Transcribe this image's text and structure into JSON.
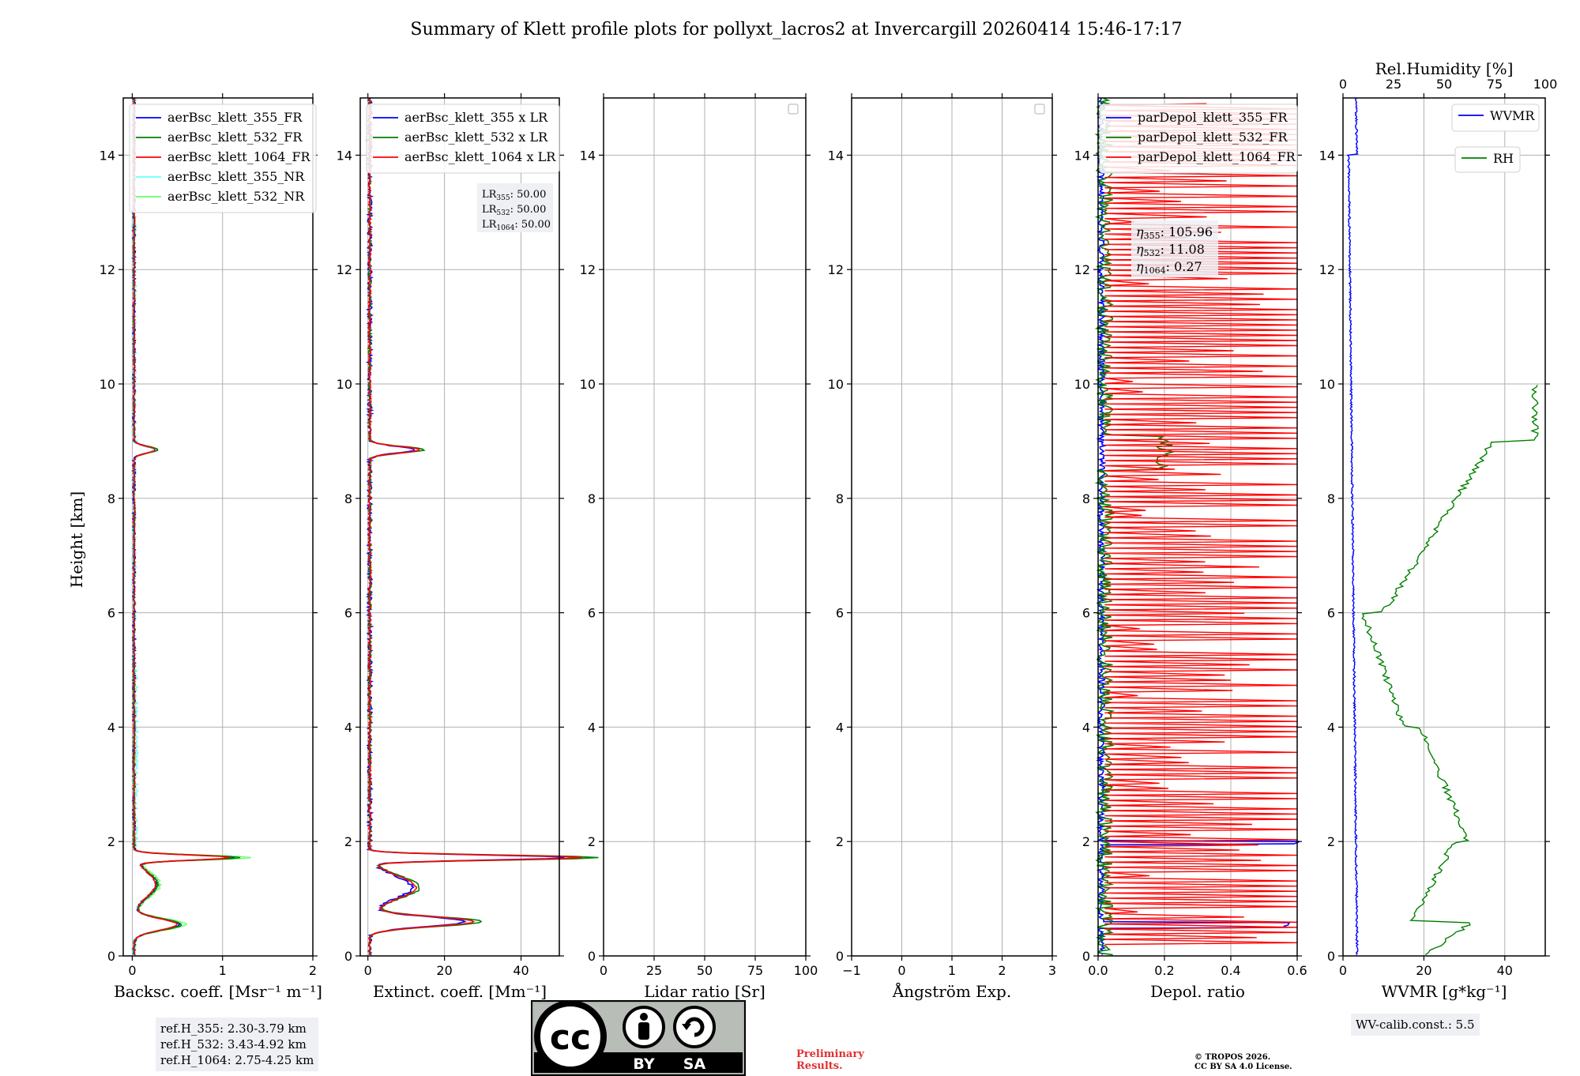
{
  "title": "Summary of Klett profile plots for pollyxt_lacros2 at Invercargill 20260414 15:46-17:17",
  "y_axis_label": "Height [km]",
  "colors": {
    "c355": "#0000ff",
    "c532": "#008000",
    "c1064": "#ff0000",
    "c355nr": "#66ffff",
    "c532nr": "#66ff66",
    "rh": "#008000",
    "wvmr": "#0000ff"
  },
  "chart_data": [
    {
      "type": "line",
      "id": "bsc",
      "xlabel": "Backsc. coeff. [Msr⁻¹ m⁻¹]",
      "xlim": [
        -0.1,
        2
      ],
      "xticks": [
        0,
        1,
        2
      ],
      "xticklabels": [
        "0",
        "1",
        "2"
      ],
      "ylim": [
        0,
        15
      ],
      "yticks": [
        0,
        2,
        4,
        6,
        8,
        10,
        12,
        14
      ],
      "legend": [
        "aerBsc_klett_355_FR",
        "aerBsc_klett_532_FR",
        "aerBsc_klett_1064_FR",
        "aerBsc_klett_355_NR",
        "aerBsc_klett_532_NR"
      ]
    },
    {
      "type": "line",
      "id": "ext",
      "xlabel": "Extinct. coeff. [Mm⁻¹]",
      "xlim": [
        -2,
        50
      ],
      "xticks": [
        0,
        20,
        40
      ],
      "xticklabels": [
        "0",
        "20",
        "40"
      ],
      "ylim": [
        0,
        15
      ],
      "yticks": [
        0,
        2,
        4,
        6,
        8,
        10,
        12,
        14
      ],
      "legend": [
        "aerBsc_klett_355 x LR",
        "aerBsc_klett_532 x LR",
        "aerBsc_klett_1064 x LR"
      ],
      "lidar_ratio": {
        "lr355": "50.00",
        "lr532": "50.00",
        "lr1064": "50.00"
      }
    },
    {
      "type": "line",
      "id": "lr",
      "xlabel": "Lidar ratio [Sr]",
      "xlim": [
        0,
        100
      ],
      "xticks": [
        0,
        25,
        50,
        75,
        100
      ],
      "xticklabels": [
        "0",
        "25",
        "50",
        "75",
        "100"
      ],
      "ylim": [
        0,
        15
      ],
      "yticks": [
        0,
        2,
        4,
        6,
        8,
        10,
        12,
        14
      ],
      "legend": []
    },
    {
      "type": "line",
      "id": "ang",
      "xlabel": "Ångström Exp.",
      "xlim": [
        -1,
        3
      ],
      "xticks": [
        -1,
        0,
        1,
        2,
        3
      ],
      "xticklabels": [
        "−1",
        "0",
        "1",
        "2",
        "3"
      ],
      "ylim": [
        0,
        15
      ],
      "yticks": [
        0,
        2,
        4,
        6,
        8,
        10,
        12,
        14
      ],
      "legend": []
    },
    {
      "type": "line",
      "id": "depol",
      "xlabel": "Depol. ratio",
      "xlim": [
        0,
        0.6
      ],
      "xticks": [
        0,
        0.2,
        0.4,
        0.6
      ],
      "xticklabels": [
        "0.0",
        "0.2",
        "0.4",
        "0.6"
      ],
      "ylim": [
        0,
        15
      ],
      "yticks": [
        0,
        2,
        4,
        6,
        8,
        10,
        12,
        14
      ],
      "legend": [
        "parDepol_klett_355_FR",
        "parDepol_klett_532_FR",
        "parDepol_klett_1064_FR"
      ],
      "eta": {
        "e355": "105.96",
        "e532": "11.08",
        "e1064": "0.27"
      }
    },
    {
      "type": "line",
      "id": "wv",
      "xlabel": "WVMR [g*kg⁻¹]",
      "xlim": [
        0,
        50
      ],
      "xticks": [
        0,
        20,
        40
      ],
      "xticklabels": [
        "0",
        "20",
        "40"
      ],
      "ylim": [
        0,
        15
      ],
      "yticks": [
        0,
        2,
        4,
        6,
        8,
        10,
        12,
        14
      ],
      "top_axis_label": "Rel.Humidity [%]",
      "top_xlim": [
        0,
        100
      ],
      "top_xticks": [
        0,
        25,
        50,
        75,
        100
      ],
      "top_xticklabels": [
        "0",
        "25",
        "50",
        "75",
        "100"
      ],
      "legend": [
        "WVMR",
        "RH"
      ]
    }
  ],
  "footer": {
    "ref_h_355": "ref.H_355: 2.30-3.79 km",
    "ref_h_532": "ref.H_532: 3.43-4.92 km",
    "ref_h_1064": "ref.H_1064: 2.75-4.25 km",
    "wv_calib": "WV-calib.const.: 5.5",
    "prelim_line1": "Preliminary",
    "prelim_line2": "Results.",
    "copyright_line1": "© TROPOS 2026.",
    "copyright_line2": "CC BY SA 4.0 License.",
    "cc_by": "BY",
    "cc_sa": "SA",
    "cc_logo": "cc"
  }
}
